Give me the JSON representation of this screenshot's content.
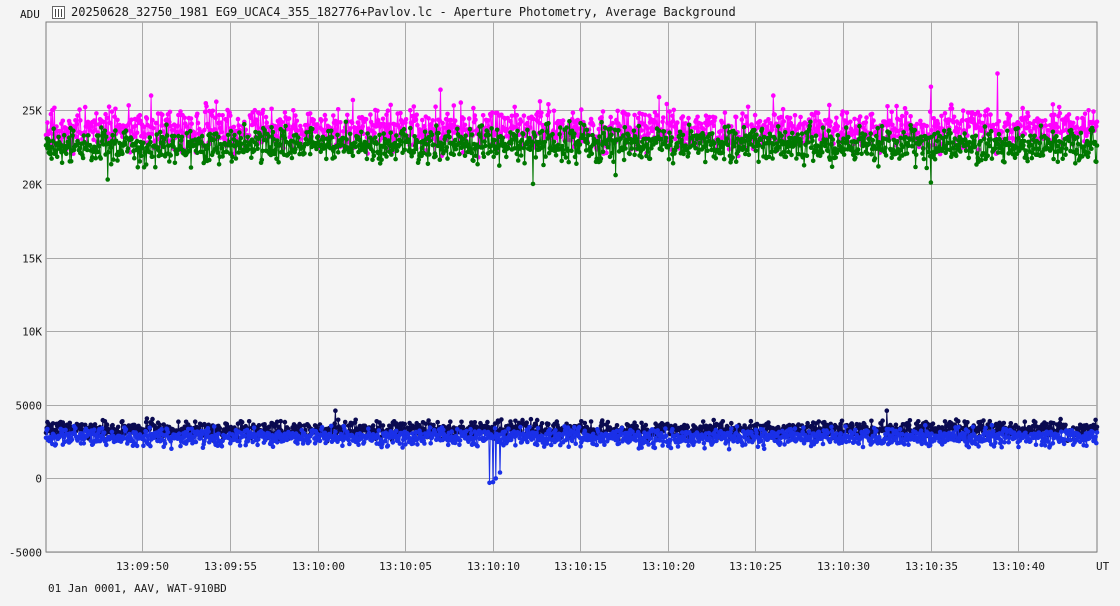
{
  "window": {
    "title": "20250628_32750_1981 EG9_UCAC4_355_182776+Pavlov.lc - Aperture Photometry, Average Background",
    "icon": "lightcurve-icon"
  },
  "footer_text": "01 Jan 0001, AAV, WAT-910BD",
  "chart_data": {
    "type": "line",
    "ylabel": "ADU",
    "xlabel": "UT",
    "ylim": [
      -5000,
      31000
    ],
    "yticks": [
      -5000,
      0,
      5000,
      10000,
      15000,
      20000,
      25000
    ],
    "ytick_labels": [
      "-5000",
      "0",
      "5000",
      "10K",
      "15K",
      "20K",
      "25K"
    ],
    "xlim": [
      "13:09:44.5",
      "13:10:44.5"
    ],
    "xticks": [
      "13:09:50",
      "13:09:55",
      "13:10:00",
      "13:10:05",
      "13:10:10",
      "13:10:15",
      "13:10:20",
      "13:10:25",
      "13:10:30",
      "13:10:35",
      "13:10:40"
    ],
    "grid": true,
    "points_per_second": 25,
    "series": [
      {
        "color": "#ff00ff",
        "mean": 23700,
        "noise": 1000,
        "events": [
          {
            "t": "13:09:50.5",
            "value": 26000
          },
          {
            "t": "13:10:02.0",
            "value": 25700
          },
          {
            "t": "13:10:07.0",
            "value": 26400
          },
          {
            "t": "13:10:19.5",
            "value": 25900
          },
          {
            "t": "13:10:26.0",
            "value": 26000
          },
          {
            "t": "13:10:35.0",
            "value": 26600
          },
          {
            "t": "13:10:38.8",
            "value": 27500
          }
        ]
      },
      {
        "color": "#007800",
        "mean": 22600,
        "noise": 850,
        "events": [
          {
            "t": "13:09:48.0",
            "value": 20300
          },
          {
            "t": "13:10:12.3",
            "value": 20000
          },
          {
            "t": "13:10:17.0",
            "value": 20600
          },
          {
            "t": "13:10:35.0",
            "value": 20100
          }
        ]
      },
      {
        "color": "#0a0a50",
        "mean": 3300,
        "noise": 420,
        "events": [
          {
            "t": "13:10:01.0",
            "value": 4600
          },
          {
            "t": "13:10:10.5",
            "value": 4000
          },
          {
            "t": "13:10:32.5",
            "value": 4600
          }
        ]
      },
      {
        "color": "#1a30e8",
        "mean": 2800,
        "noise": 420,
        "events": [
          {
            "t": "13:10:09.8",
            "value": -300
          },
          {
            "t": "13:10:10.0",
            "value": -250
          },
          {
            "t": "13:10:10.2",
            "value": 0
          },
          {
            "t": "13:10:10.4",
            "value": 400
          }
        ]
      }
    ]
  }
}
